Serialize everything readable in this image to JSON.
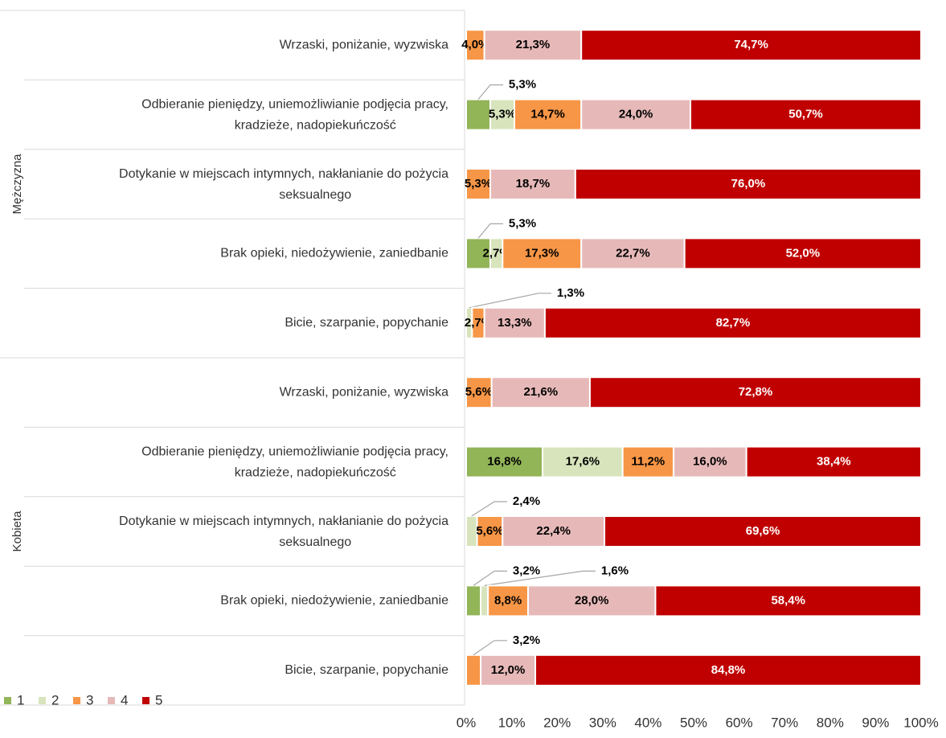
{
  "chart_data": {
    "type": "stacked-bar-horizontal",
    "groups": [
      {
        "name": "Mężczyzna",
        "categories": [
          "Wrzaski, poniżanie, wyzwiska",
          "Odbieranie pieniędzy, uniemożliwianie podjęcia pracy, kradzieże, nadopiekuńczość",
          "Dotykanie w miejscach intymnych, nakłanianie do pożycia seksualnego",
          "Brak opieki, niedożywienie, zaniedbanie",
          "Bicie, szarpanie, popychanie"
        ]
      },
      {
        "name": "Kobieta",
        "categories": [
          "Wrzaski, poniżanie, wyzwiska",
          "Odbieranie pieniędzy, uniemożliwianie podjęcia pracy, kradzieże, nadopiekuńczość",
          "Dotykanie w miejscach intymnych, nakłanianie do pożycia seksualnego",
          "Brak opieki, niedożywienie, zaniedbanie",
          "Bicie, szarpanie, popychanie"
        ]
      }
    ],
    "series": [
      {
        "name": "1",
        "color": "#92b558",
        "values": [
          null,
          5.3,
          null,
          5.3,
          null,
          null,
          16.8,
          null,
          3.2,
          null
        ],
        "value_labels": [
          null,
          "5,3%",
          null,
          "5,3%",
          null,
          null,
          "16,8%",
          null,
          "3,2%",
          null
        ]
      },
      {
        "name": "2",
        "color": "#d8e4bc",
        "values": [
          null,
          5.3,
          null,
          2.7,
          1.3,
          null,
          17.6,
          2.4,
          1.6,
          null
        ],
        "value_labels": [
          null,
          "5,3%",
          null,
          "2,7%",
          "1,3%",
          null,
          "17,6%",
          "2,4%",
          "1,6%",
          null
        ]
      },
      {
        "name": "3",
        "color": "#f79646",
        "values": [
          4.0,
          14.7,
          5.3,
          17.3,
          2.7,
          5.6,
          11.2,
          5.6,
          8.8,
          3.2
        ],
        "value_labels": [
          "4,0%",
          "14,7%",
          "5,3%",
          "17,3%",
          "2,7%",
          "5,6%",
          "11,2%",
          "5,6%",
          "8,8%",
          "3,2%"
        ]
      },
      {
        "name": "4",
        "color": "#e6b9b8",
        "values": [
          21.3,
          24.0,
          18.7,
          22.7,
          13.3,
          21.6,
          16.0,
          22.4,
          28.0,
          12.0
        ],
        "value_labels": [
          "21,3%",
          "24,0%",
          "18,7%",
          "22,7%",
          "13,3%",
          "21,6%",
          "16,0%",
          "22,4%",
          "28,0%",
          "12,0%"
        ]
      },
      {
        "name": "5",
        "color": "#c00000",
        "values": [
          74.7,
          50.7,
          76.0,
          52.0,
          82.7,
          72.8,
          38.4,
          69.6,
          58.4,
          84.8
        ],
        "value_labels": [
          "74,7%",
          "50,7%",
          "76,0%",
          "52,0%",
          "82,7%",
          "72,8%",
          "38,4%",
          "69,6%",
          "58,4%",
          "84,8%"
        ]
      }
    ],
    "xlim": [
      0,
      100
    ],
    "xticks": [
      {
        "value": 0,
        "label": "0%"
      },
      {
        "value": 10,
        "label": "10%"
      },
      {
        "value": 20,
        "label": "20%"
      },
      {
        "value": 30,
        "label": "30%"
      },
      {
        "value": 40,
        "label": "40%"
      },
      {
        "value": 50,
        "label": "50%"
      },
      {
        "value": 60,
        "label": "60%"
      },
      {
        "value": 70,
        "label": "70%"
      },
      {
        "value": 80,
        "label": "80%"
      },
      {
        "value": 90,
        "label": "90%"
      },
      {
        "value": 100,
        "label": "100%"
      }
    ],
    "legend": "bottom-left"
  }
}
